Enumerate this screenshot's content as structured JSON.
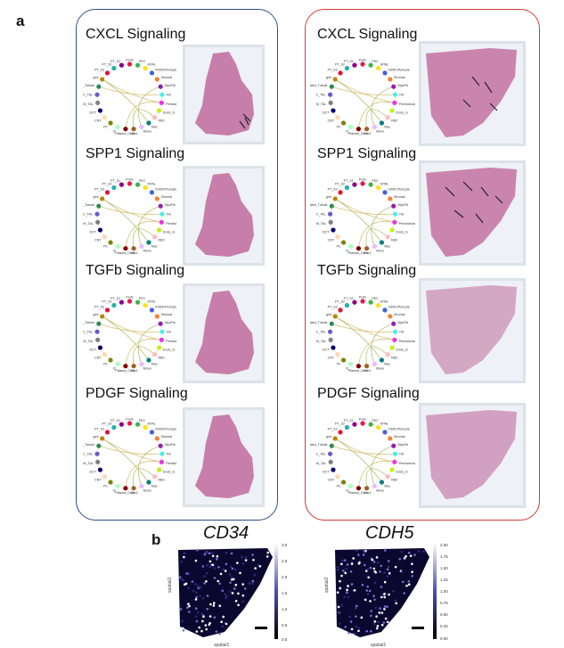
{
  "panel_a": {
    "letter": "a",
    "left_group": {
      "titles": [
        "CXCL Signaling",
        "SPP1 Signaling",
        "TGFb Signaling",
        "PDGF Signaling"
      ]
    },
    "right_group": {
      "titles": [
        "CXCL Signaling",
        "SPP1 Signaling",
        "TGFb Signaling",
        "PDGF Signaling"
      ]
    },
    "cell_types": [
      "Podo",
      "PEC",
      "MTAL",
      "VSMC/Pericyte",
      "Stromal",
      "MyoFib",
      "Fib",
      "Perictubular",
      "Endo_G",
      "RBC",
      "Mac",
      "Mono",
      "Cdc1",
      "Plasma_Cells",
      "IC",
      "PC",
      "CNT",
      "DCT",
      "M_TAL",
      "C_TAL",
      "Dedifferentiated_Tubule",
      "gmt",
      "PT_S3",
      "PT_S2",
      "PT_S1"
    ]
  },
  "panel_b": {
    "letter": "b",
    "maps": [
      {
        "gene": "CD34",
        "xlabel": "spatial1",
        "ylabel": "spatial2",
        "ticks": [
          "3.0",
          "2.5",
          "2.0",
          "1.5",
          "1.0",
          "0.5",
          "0.0"
        ]
      },
      {
        "gene": "CDH5",
        "xlabel": "spatial1",
        "ylabel": "spatial2",
        "ticks": [
          "2.00",
          "1.75",
          "1.50",
          "1.25",
          "1.00",
          "0.75",
          "0.50",
          "0.25",
          "0.00"
        ]
      }
    ]
  },
  "colors": {
    "left_border": "#2f4f8a",
    "right_border": "#d23a3a",
    "tissue": "#c06a9c",
    "map_bg": "#0b0830"
  }
}
